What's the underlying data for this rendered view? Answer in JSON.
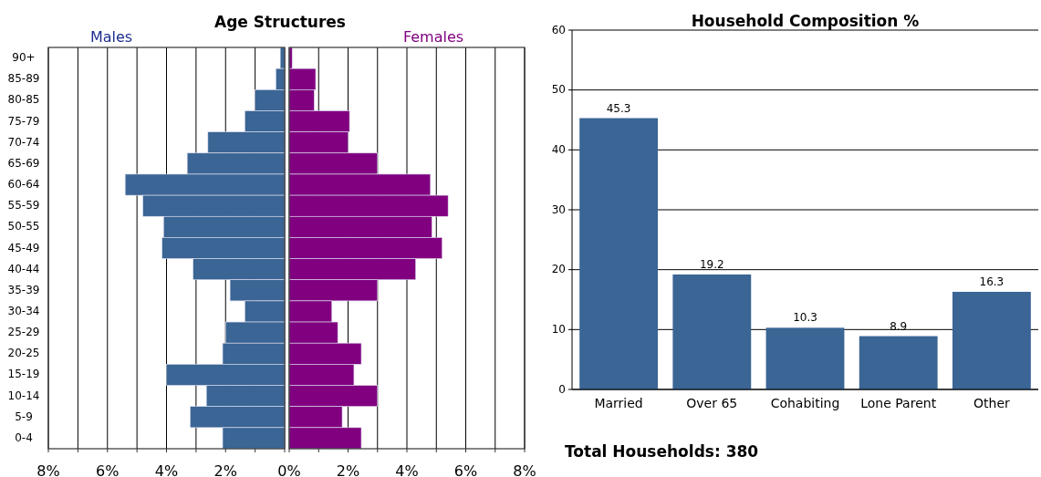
{
  "chart_data": [
    {
      "type": "bar",
      "orientation": "horizontal",
      "title": "Age Structures",
      "subtitle": "Males",
      "categories": [
        "90+",
        "85-89",
        "80-85",
        "75-79",
        "70-74",
        "65-69",
        "60-64",
        "55-59",
        "50-55",
        "45-49",
        "40-44",
        "35-39",
        "30-34",
        "25-29",
        "20-25",
        "15-19",
        "10-14",
        "5-9",
        "0-4"
      ],
      "series": [
        {
          "color": "#3a6595",
          "values": [
            0.15,
            0.3,
            1.0,
            1.35,
            2.6,
            3.3,
            5.4,
            4.8,
            4.1,
            4.15,
            3.1,
            1.85,
            1.35,
            2.0,
            2.1,
            4.0,
            2.65,
            3.2,
            2.1
          ]
        }
      ],
      "xlim": [
        8,
        0
      ],
      "xticks": [
        {
          "value": 8,
          "label": "8%"
        },
        {
          "value": 7,
          "label": null
        },
        {
          "value": 6,
          "label": "6%"
        },
        {
          "value": 5,
          "label": null
        },
        {
          "value": 4,
          "label": "4%"
        },
        {
          "value": 3,
          "label": null
        },
        {
          "value": 2,
          "label": "2%"
        },
        {
          "value": 1,
          "label": null
        },
        {
          "value": 0,
          "label": null
        }
      ],
      "grid": "x"
    },
    {
      "type": "bar",
      "orientation": "horizontal",
      "subtitle": "Females",
      "categories": [
        null,
        null,
        null,
        null,
        null,
        null,
        null,
        null,
        null,
        null,
        null,
        null,
        null,
        null,
        null,
        null,
        null,
        null,
        null
      ],
      "series": [
        {
          "color": "#800080",
          "values": [
            0.1,
            0.9,
            0.85,
            2.05,
            2.0,
            3.0,
            4.8,
            5.4,
            4.85,
            5.2,
            4.3,
            3.0,
            1.45,
            1.65,
            2.45,
            2.2,
            3.0,
            1.8,
            2.45
          ]
        }
      ],
      "xlim": [
        0,
        8
      ],
      "xticks": [
        {
          "value": 0,
          "label": "0%"
        },
        {
          "value": 1,
          "label": null
        },
        {
          "value": 2,
          "label": "2%"
        },
        {
          "value": 3,
          "label": null
        },
        {
          "value": 4,
          "label": "4%"
        },
        {
          "value": 5,
          "label": null
        },
        {
          "value": 6,
          "label": "6%"
        },
        {
          "value": 7,
          "label": null
        },
        {
          "value": 8,
          "label": "8%"
        }
      ],
      "grid": "x",
      "tick_labels": "x"
    },
    {
      "type": "bar",
      "title": "Household Composition %",
      "categories": [
        "Married",
        "Over 65",
        "Cohabiting",
        "Lone Parent",
        "Other"
      ],
      "series": [
        {
          "color": "#3a6595",
          "values": [
            45.3,
            19.2,
            10.3,
            8.9,
            16.3
          ]
        }
      ],
      "ylim": [
        0,
        60
      ],
      "yticks": [
        0,
        10,
        20,
        30,
        40,
        50,
        60
      ],
      "grid": "y",
      "data_labels": true,
      "annotations": [
        "Total Households: 380"
      ]
    }
  ]
}
